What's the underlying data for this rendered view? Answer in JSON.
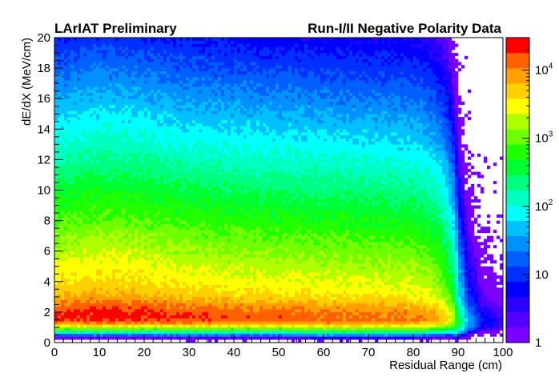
{
  "chart_data": {
    "type": "heatmap",
    "title_left": "LArIAT Preliminary",
    "title_right": "Run-I/II Negative Polarity Data",
    "xlabel": "Residual Range (cm)",
    "ylabel": "dE/dX (MeV/cm)",
    "xlim": [
      0,
      100
    ],
    "ylim": [
      0,
      20
    ],
    "x_ticks": [
      "0",
      "10",
      "20",
      "30",
      "40",
      "50",
      "60",
      "70",
      "80",
      "90",
      "100"
    ],
    "y_ticks": [
      "0",
      "2",
      "4",
      "6",
      "8",
      "10",
      "12",
      "14",
      "16",
      "18",
      "20"
    ],
    "colorbar": {
      "scale": "log",
      "range": [
        1,
        30000
      ],
      "ticks": [
        {
          "base": "1",
          "exp": "",
          "value": 1
        },
        {
          "base": "10",
          "exp": "",
          "value": 10
        },
        {
          "base": "10",
          "exp": "2",
          "value": 100
        },
        {
          "base": "10",
          "exp": "3",
          "value": 1000
        },
        {
          "base": "10",
          "exp": "4",
          "value": 10000
        }
      ],
      "colors": [
        "#7a00ff",
        "#5200ff",
        "#2a00ff",
        "#0000ff",
        "#0030ff",
        "#0060ff",
        "#0090ff",
        "#00c0ff",
        "#00ffff",
        "#00ffc0",
        "#00ff80",
        "#00ff30",
        "#20ff00",
        "#70ff00",
        "#b0ff00",
        "#ffff00",
        "#ffd000",
        "#ffa000",
        "#ff6000",
        "#ff0000"
      ]
    },
    "profile": {
      "x": [
        0,
        10,
        20,
        30,
        40,
        50,
        60,
        70,
        80,
        85,
        88,
        90,
        92,
        95,
        100
      ],
      "peak_dedx": [
        1.7,
        1.7,
        1.7,
        1.65,
        1.65,
        1.65,
        1.6,
        1.6,
        1.6,
        1.6,
        1.6,
        1.3,
        1.3,
        1.3,
        1.3
      ],
      "peak_counts_approx": [
        20000,
        25000,
        22000,
        18000,
        16000,
        15000,
        14000,
        13000,
        12000,
        8000,
        3000,
        300,
        40,
        8,
        3
      ]
    }
  }
}
